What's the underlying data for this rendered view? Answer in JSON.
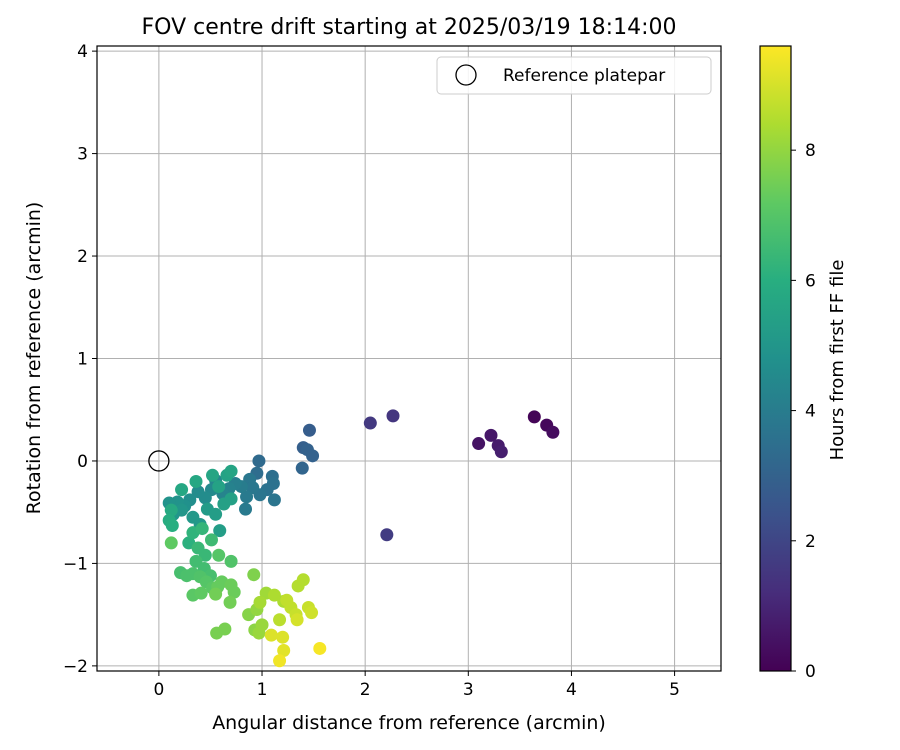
{
  "chart_data": {
    "type": "scatter",
    "title": "FOV centre drift starting at 2025/03/19 18:14:00",
    "xlabel": "Angular distance from reference (arcmin)",
    "ylabel": "Rotation from reference (arcmin)",
    "xlim": [
      -0.6,
      5.45
    ],
    "ylim": [
      -2.05,
      4.05
    ],
    "xticks": [
      0,
      1,
      2,
      3,
      4,
      5
    ],
    "yticks": [
      -2,
      -1,
      0,
      1,
      2,
      3,
      4
    ],
    "xtick_labels": [
      "0",
      "1",
      "2",
      "3",
      "4",
      "5"
    ],
    "ytick_labels": [
      "−2",
      "−1",
      "0",
      "1",
      "2",
      "3",
      "4"
    ],
    "grid": true,
    "legend": {
      "position": "top-right",
      "entries": [
        "Reference platepar"
      ]
    },
    "reference_point": {
      "x": 0,
      "y": 0
    },
    "colorbar": {
      "label": "Hours from first FF file",
      "min": 0,
      "max": 9.6,
      "ticks": [
        0,
        2,
        4,
        6,
        8
      ],
      "tick_labels": [
        "0",
        "2",
        "4",
        "6",
        "8"
      ],
      "colormap": "viridis"
    },
    "points": [
      [
        3.64,
        0.43,
        0.1
      ],
      [
        3.76,
        0.35,
        0.2
      ],
      [
        3.82,
        0.28,
        0.3
      ],
      [
        3.1,
        0.17,
        0.5
      ],
      [
        3.22,
        0.25,
        0.6
      ],
      [
        3.29,
        0.15,
        0.7
      ],
      [
        3.32,
        0.09,
        0.8
      ],
      [
        2.27,
        0.44,
        1.5
      ],
      [
        2.05,
        0.37,
        1.6
      ],
      [
        2.21,
        -0.72,
        1.7
      ],
      [
        1.46,
        0.3,
        2.8
      ],
      [
        1.4,
        0.13,
        2.9
      ],
      [
        1.44,
        0.11,
        3.0
      ],
      [
        1.49,
        0.05,
        3.0
      ],
      [
        1.39,
        -0.07,
        3.1
      ],
      [
        0.97,
        0.0,
        3.3
      ],
      [
        0.95,
        -0.12,
        3.4
      ],
      [
        1.1,
        -0.15,
        3.5
      ],
      [
        1.11,
        -0.22,
        3.6
      ],
      [
        1.05,
        -0.28,
        3.6
      ],
      [
        1.12,
        -0.38,
        3.7
      ],
      [
        0.98,
        -0.33,
        3.7
      ],
      [
        0.88,
        -0.18,
        3.8
      ],
      [
        0.91,
        -0.26,
        3.8
      ],
      [
        0.85,
        -0.35,
        3.9
      ],
      [
        0.84,
        -0.47,
        3.9
      ],
      [
        0.8,
        -0.25,
        4.0
      ],
      [
        0.74,
        -0.22,
        4.1
      ],
      [
        0.68,
        -0.27,
        4.2
      ],
      [
        0.62,
        -0.32,
        4.3
      ],
      [
        0.55,
        -0.19,
        4.4
      ],
      [
        0.51,
        -0.28,
        4.5
      ],
      [
        0.45,
        -0.36,
        4.6
      ],
      [
        0.38,
        -0.3,
        4.6
      ],
      [
        0.3,
        -0.38,
        4.7
      ],
      [
        0.25,
        -0.44,
        4.8
      ],
      [
        0.18,
        -0.4,
        4.9
      ],
      [
        0.1,
        -0.41,
        4.9
      ],
      [
        0.14,
        -0.52,
        5.0
      ],
      [
        0.22,
        -0.48,
        5.0
      ],
      [
        0.33,
        -0.55,
        5.1
      ],
      [
        0.4,
        -0.62,
        5.1
      ],
      [
        0.47,
        -0.47,
        5.2
      ],
      [
        0.55,
        -0.52,
        5.3
      ],
      [
        0.59,
        -0.68,
        5.3
      ],
      [
        0.63,
        -0.42,
        5.4
      ],
      [
        0.7,
        -0.37,
        5.4
      ],
      [
        0.58,
        -0.25,
        5.5
      ],
      [
        0.66,
        -0.14,
        5.5
      ],
      [
        0.7,
        -0.1,
        5.6
      ],
      [
        0.52,
        -0.14,
        5.6
      ],
      [
        0.36,
        -0.2,
        5.7
      ],
      [
        0.22,
        -0.28,
        5.7
      ],
      [
        0.12,
        -0.48,
        5.8
      ],
      [
        0.1,
        -0.58,
        5.9
      ],
      [
        0.13,
        -0.63,
        6.0
      ],
      [
        0.29,
        -0.8,
        6.1
      ],
      [
        0.33,
        -0.7,
        6.2
      ],
      [
        0.42,
        -0.66,
        6.3
      ],
      [
        0.38,
        -0.85,
        6.4
      ],
      [
        0.45,
        -0.92,
        6.4
      ],
      [
        0.51,
        -0.77,
        6.5
      ],
      [
        0.36,
        -0.98,
        6.6
      ],
      [
        0.44,
        -1.05,
        6.6
      ],
      [
        0.5,
        -1.12,
        6.7
      ],
      [
        0.21,
        -1.09,
        6.7
      ],
      [
        0.27,
        -1.12,
        6.8
      ],
      [
        0.33,
        -1.1,
        6.8
      ],
      [
        0.4,
        -1.13,
        6.9
      ],
      [
        0.7,
        -0.98,
        6.9
      ],
      [
        0.58,
        -0.92,
        7.0
      ],
      [
        0.46,
        -1.18,
        7.0
      ],
      [
        0.52,
        -1.24,
        7.1
      ],
      [
        0.33,
        -1.31,
        7.1
      ],
      [
        0.41,
        -1.29,
        7.2
      ],
      [
        0.12,
        -0.8,
        7.2
      ],
      [
        0.57,
        -1.23,
        7.3
      ],
      [
        0.61,
        -1.18,
        7.3
      ],
      [
        0.7,
        -1.21,
        7.4
      ],
      [
        0.73,
        -1.28,
        7.4
      ],
      [
        0.55,
        -1.3,
        7.5
      ],
      [
        0.69,
        -1.38,
        7.5
      ],
      [
        0.56,
        -1.68,
        7.6
      ],
      [
        0.64,
        -1.64,
        7.6
      ],
      [
        0.92,
        -1.11,
        7.7
      ],
      [
        0.87,
        -1.5,
        7.8
      ],
      [
        0.93,
        -1.65,
        7.9
      ],
      [
        0.95,
        -1.45,
        8.0
      ],
      [
        0.97,
        -1.68,
        8.1
      ],
      [
        1.0,
        -1.6,
        8.1
      ],
      [
        1.04,
        -1.29,
        8.2
      ],
      [
        0.98,
        -1.38,
        8.3
      ],
      [
        1.12,
        -1.31,
        8.4
      ],
      [
        1.21,
        -1.37,
        8.4
      ],
      [
        1.35,
        -1.22,
        8.5
      ],
      [
        1.4,
        -1.16,
        8.5
      ],
      [
        1.17,
        -1.55,
        8.6
      ],
      [
        1.24,
        -1.36,
        8.7
      ],
      [
        1.28,
        -1.43,
        8.7
      ],
      [
        1.33,
        -1.5,
        8.8
      ],
      [
        1.45,
        -1.43,
        8.8
      ],
      [
        1.48,
        -1.48,
        8.9
      ],
      [
        1.34,
        -1.55,
        9.0
      ],
      [
        1.09,
        -1.7,
        9.1
      ],
      [
        1.2,
        -1.72,
        9.1
      ],
      [
        1.21,
        -1.85,
        9.2
      ],
      [
        1.17,
        -1.95,
        9.4
      ],
      [
        1.56,
        -1.83,
        9.5
      ]
    ]
  }
}
